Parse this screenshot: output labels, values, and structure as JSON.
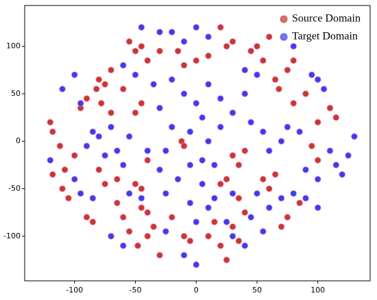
{
  "chart_data": {
    "type": "scatter",
    "xlim": [
      -141,
      143
    ],
    "ylim": [
      -147,
      143
    ],
    "xticks": [
      -100,
      -50,
      0,
      50,
      100
    ],
    "yticks": [
      -100,
      -50,
      0,
      50,
      100
    ],
    "legend": "upper right",
    "series": [
      {
        "name": "Source Domain",
        "color": "#c0140c",
        "x": [
          -120,
          -118,
          -112,
          -108,
          -110,
          -105,
          -118,
          -100,
          -95,
          -90,
          -82,
          -78,
          -70,
          -80,
          -75,
          -65,
          -60,
          -55,
          -48,
          -40,
          -35,
          -30,
          -45,
          -50,
          -45,
          -40,
          -50,
          -45,
          -40,
          -50,
          -45,
          -40,
          -30,
          -55,
          -20,
          -10,
          -5,
          10,
          15,
          20,
          25,
          -12,
          -10,
          30,
          35,
          40,
          25,
          20,
          35,
          40,
          30,
          35,
          20,
          25,
          30,
          10,
          0,
          -15,
          -10,
          45,
          50,
          55,
          60,
          65,
          68,
          75,
          80,
          80,
          90,
          100,
          110,
          115,
          95,
          100,
          55,
          60,
          65,
          -85,
          -90,
          -65,
          -80,
          -75,
          -60,
          -70,
          70,
          75,
          85
        ],
        "y": [
          20,
          10,
          -5,
          -30,
          -50,
          -60,
          -35,
          -15,
          35,
          45,
          55,
          40,
          30,
          -30,
          -45,
          -65,
          -80,
          -95,
          -110,
          -100,
          -90,
          -120,
          -70,
          -45,
          -50,
          -20,
          30,
          40,
          -75,
          95,
          100,
          85,
          95,
          105,
          -80,
          -100,
          -105,
          -100,
          -85,
          -110,
          -125,
          0,
          -5,
          -15,
          -25,
          -10,
          -40,
          -45,
          -60,
          -75,
          -90,
          -105,
          120,
          100,
          105,
          90,
          85,
          95,
          80,
          95,
          100,
          85,
          110,
          65,
          55,
          75,
          85,
          40,
          50,
          20,
          35,
          25,
          -5,
          -20,
          -40,
          -50,
          -35,
          -85,
          -80,
          -40,
          65,
          60,
          55,
          75,
          -90,
          -80,
          -65
        ]
      },
      {
        "name": "Target Domain",
        "color": "#1a1aee",
        "x": [
          -110,
          -100,
          -95,
          -85,
          -90,
          -80,
          -70,
          -65,
          -55,
          -60,
          -75,
          -55,
          -45,
          -30,
          -25,
          -20,
          -30,
          -35,
          -20,
          -10,
          0,
          5,
          10,
          20,
          -5,
          10,
          20,
          30,
          40,
          45,
          55,
          60,
          70,
          75,
          85,
          90,
          100,
          110,
          115,
          120,
          125,
          130,
          100,
          95,
          105,
          80,
          70,
          60,
          50,
          45,
          30,
          15,
          5,
          10,
          -5,
          -15,
          -25,
          -25,
          30,
          25,
          5,
          -5,
          15,
          -40,
          0,
          -10,
          -20,
          0,
          10,
          -50,
          -60,
          -45,
          -30,
          80,
          -120,
          -100,
          -95,
          -85,
          -70,
          -60,
          55,
          40,
          40,
          50,
          -10,
          0,
          90,
          100
        ],
        "y": [
          55,
          70,
          40,
          10,
          -5,
          5,
          15,
          -10,
          5,
          -25,
          -15,
          -55,
          -60,
          -30,
          -10,
          15,
          35,
          60,
          65,
          50,
          40,
          25,
          60,
          45,
          10,
          0,
          15,
          30,
          50,
          20,
          10,
          -10,
          0,
          15,
          10,
          -30,
          -40,
          -10,
          -25,
          -35,
          -15,
          5,
          65,
          70,
          55,
          -55,
          -60,
          -70,
          -55,
          -80,
          -55,
          -60,
          -45,
          -70,
          -65,
          -40,
          -55,
          -95,
          -100,
          -85,
          -20,
          -25,
          -25,
          -10,
          -85,
          105,
          115,
          120,
          110,
          70,
          80,
          120,
          115,
          100,
          -20,
          -40,
          -55,
          -60,
          -100,
          -110,
          -95,
          -110,
          75,
          70,
          -120,
          -130,
          -60,
          -70
        ]
      }
    ]
  }
}
